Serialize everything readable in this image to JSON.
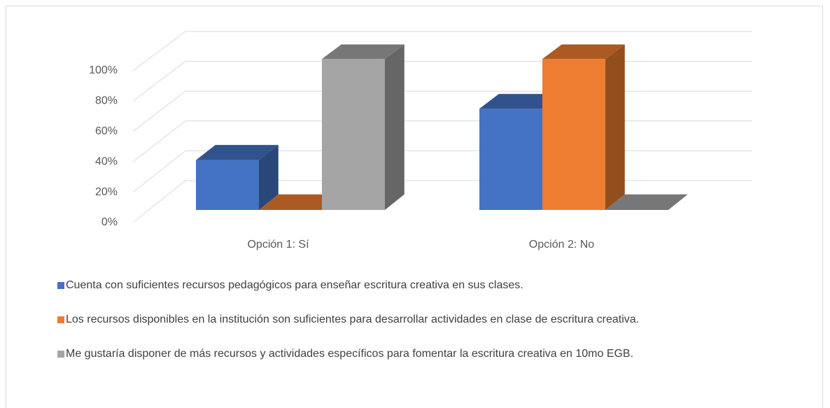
{
  "chart_data": {
    "type": "bar3d",
    "categories": [
      "Opción 1: Sí",
      "Opción 2: No"
    ],
    "series": [
      {
        "name": "Cuenta con suficientes recursos pedagógicos para enseñar escritura creativa en sus clases.",
        "color": "#4472c4",
        "values": [
          33,
          67
        ]
      },
      {
        "name": "Los recursos disponibles en la institución son suficientes para desarrollar actividades en clase de escritura creativa.",
        "color": "#ed7d31",
        "values": [
          0,
          100
        ]
      },
      {
        "name": "Me gustaría disponer de más recursos y actividades específicos para fomentar la escritura creativa en 10mo EGB.",
        "color": "#a5a5a5",
        "values": [
          100,
          0
        ]
      }
    ],
    "ylim": [
      0,
      100
    ],
    "yticks": [
      {
        "value": 0,
        "label": "0%"
      },
      {
        "value": 20,
        "label": "20%"
      },
      {
        "value": 40,
        "label": "40%"
      },
      {
        "value": 60,
        "label": "60%"
      },
      {
        "value": 80,
        "label": "80%"
      },
      {
        "value": 100,
        "label": "100%"
      }
    ],
    "grid": true,
    "legend": "bottom"
  }
}
